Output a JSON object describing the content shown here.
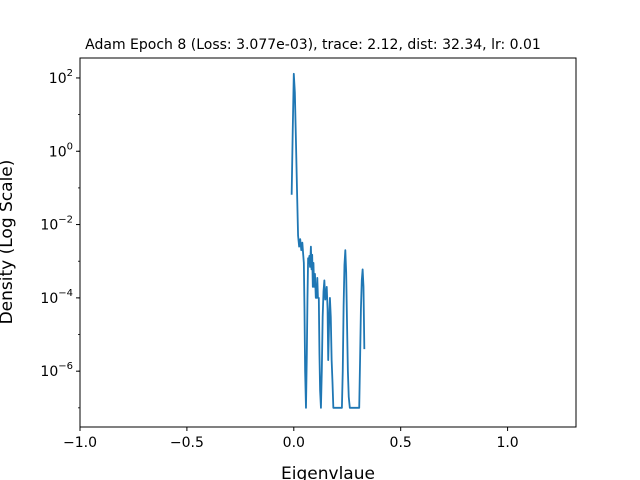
{
  "chart_data": {
    "type": "line",
    "title": "Adam Epoch 8 (Loss: 3.077e-03), trace: 2.12, dist: 32.34, lr: 0.01",
    "xlabel": "Eigenvlaue",
    "ylabel": "Density (Log Scale)",
    "xlim": [
      -1.0,
      1.32
    ],
    "ylim": [
      3e-08,
      350
    ],
    "yscale": "log",
    "grid": false,
    "x_ticks": [
      -1.0,
      -0.5,
      0.0,
      0.5,
      1.0
    ],
    "x_tick_labels": [
      "−1.0",
      "−0.5",
      "0.0",
      "0.5",
      "1.0"
    ],
    "y_ticks": [
      {
        "value": 100,
        "base": "10",
        "exp": "2"
      },
      {
        "value": 1,
        "base": "10",
        "exp": "0"
      },
      {
        "value": 0.01,
        "base": "10",
        "exp": "−2"
      },
      {
        "value": 0.0001,
        "base": "10",
        "exp": "−4"
      },
      {
        "value": 1e-06,
        "base": "10",
        "exp": "−6"
      }
    ],
    "series": [
      {
        "color": "#1f77b4",
        "points": [
          [
            -0.01,
            0.065
          ],
          [
            -0.005,
            3.5
          ],
          [
            0.0,
            130
          ],
          [
            0.005,
            40
          ],
          [
            0.01,
            2.0
          ],
          [
            0.015,
            0.09
          ],
          [
            0.02,
            0.005
          ],
          [
            0.025,
            0.0025
          ],
          [
            0.03,
            0.004
          ],
          [
            0.035,
            0.002
          ],
          [
            0.04,
            0.0032
          ],
          [
            0.043,
            0.0018
          ],
          [
            0.047,
            0.0009
          ],
          [
            0.05,
            5e-05
          ],
          [
            0.053,
            1e-06
          ],
          [
            0.057,
            1e-07
          ],
          [
            0.061,
            3e-06
          ],
          [
            0.064,
            0.0001
          ],
          [
            0.067,
            0.0012
          ],
          [
            0.07,
            0.0009
          ],
          [
            0.073,
            0.0014
          ],
          [
            0.076,
            0.0007
          ],
          [
            0.08,
            0.0025
          ],
          [
            0.083,
            0.0006
          ],
          [
            0.086,
            0.0015
          ],
          [
            0.089,
            0.0002
          ],
          [
            0.092,
            0.0009
          ],
          [
            0.095,
            0.0002
          ],
          [
            0.099,
            0.00045
          ],
          [
            0.103,
            0.0001
          ],
          [
            0.107,
            0.0001
          ],
          [
            0.11,
            0.00035
          ],
          [
            0.113,
            0.0001
          ],
          [
            0.117,
            0.0001
          ],
          [
            0.12,
            3e-06
          ],
          [
            0.123,
            3e-07
          ],
          [
            0.127,
            1e-07
          ],
          [
            0.131,
            1e-06
          ],
          [
            0.135,
            3e-05
          ],
          [
            0.139,
            0.00015
          ],
          [
            0.143,
            0.0003
          ],
          [
            0.147,
            9e-05
          ],
          [
            0.15,
            0.0001
          ],
          [
            0.154,
            0.0002
          ],
          [
            0.158,
            5e-05
          ],
          [
            0.161,
            2e-06
          ],
          [
            0.165,
            2e-05
          ],
          [
            0.169,
            0.0001
          ],
          [
            0.173,
            3e-05
          ],
          [
            0.177,
            2e-06
          ],
          [
            0.181,
            5e-07
          ],
          [
            0.185,
            1e-07
          ],
          [
            0.2,
            1e-07
          ],
          [
            0.215,
            1e-07
          ],
          [
            0.225,
            1e-07
          ],
          [
            0.229,
            1e-06
          ],
          [
            0.233,
            6e-05
          ],
          [
            0.237,
            0.0008
          ],
          [
            0.241,
            0.002
          ],
          [
            0.245,
            0.0005
          ],
          [
            0.249,
            2e-05
          ],
          [
            0.253,
            1e-06
          ],
          [
            0.257,
            2e-07
          ],
          [
            0.262,
            1e-07
          ],
          [
            0.28,
            1e-07
          ],
          [
            0.3,
            1e-07
          ],
          [
            0.306,
            1e-07
          ],
          [
            0.31,
            2e-06
          ],
          [
            0.314,
            5e-05
          ],
          [
            0.318,
            0.0003
          ],
          [
            0.322,
            0.0006
          ],
          [
            0.326,
            0.0002
          ],
          [
            0.33,
            4e-06
          ]
        ]
      }
    ]
  }
}
